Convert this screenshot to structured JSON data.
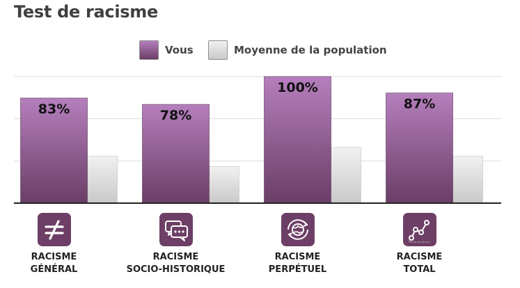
{
  "title": "Test de racisme",
  "legend": [
    {
      "label": "Vous",
      "swatch": "vous"
    },
    {
      "label": "Moyenne de la population",
      "swatch": "moyenne"
    }
  ],
  "colors": {
    "vous_top": "#b57fbd",
    "vous_bottom": "#6a3e66",
    "moyenne_top": "#f1f1f1",
    "moyenne_bottom": "#c9c9c9",
    "icon_bg": "#6d3f66",
    "axis": "#222222",
    "grid": "#dddddd"
  },
  "chart_data": {
    "type": "bar",
    "ylim": [
      0,
      100
    ],
    "grid": true,
    "legend_position": "top-center",
    "categories": [
      {
        "line1": "RACISME",
        "line2": "GÉNÉRAL",
        "icon": "not-equal-icon"
      },
      {
        "line1": "RACISME",
        "line2": "SOCIO-HISTORIQUE",
        "icon": "speech-bubbles-icon"
      },
      {
        "line1": "RACISME",
        "line2": "PERPÉTUEL",
        "icon": "globe-cycle-icon"
      },
      {
        "line1": "RACISME",
        "line2": "TOTAL",
        "icon": "line-graph-icon"
      }
    ],
    "series": [
      {
        "name": "Vous",
        "values": [
          83,
          78,
          100,
          87
        ],
        "labels": [
          "83%",
          "78%",
          "100%",
          "87%"
        ]
      },
      {
        "name": "Moyenne de la population",
        "values": [
          37,
          29,
          44,
          37
        ]
      }
    ]
  }
}
